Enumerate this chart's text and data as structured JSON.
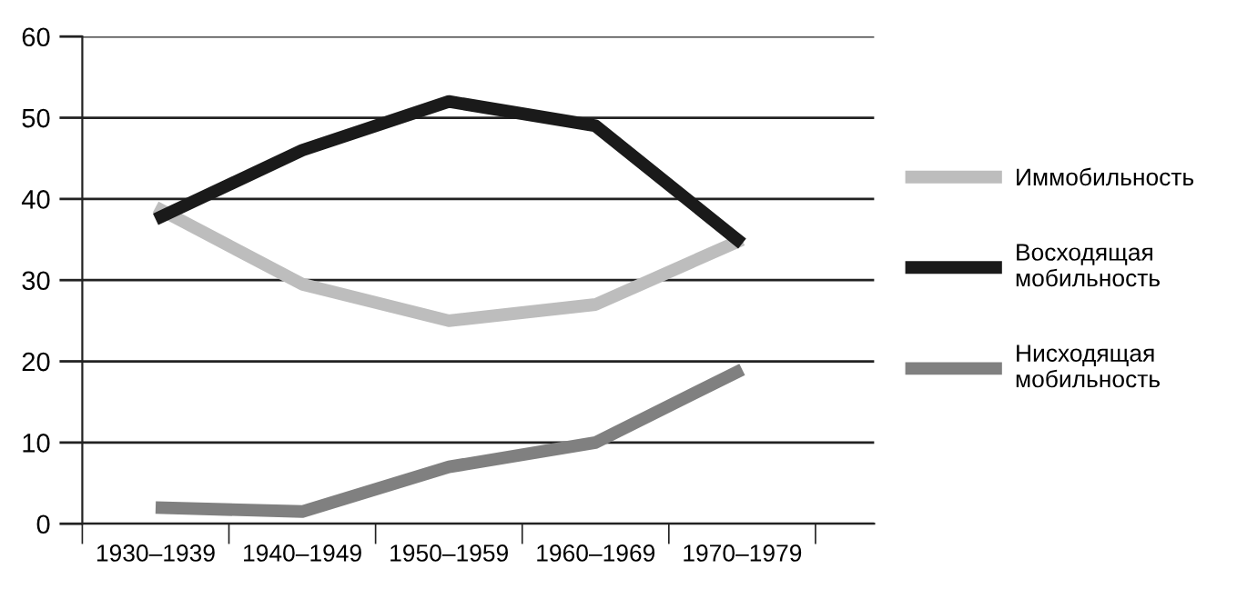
{
  "chart_data": {
    "type": "line",
    "categories": [
      "1930–1939",
      "1940–1949",
      "1950–1959",
      "1960–1969",
      "1970–1979"
    ],
    "series": [
      {
        "name": "Иммобильность",
        "color": "#bdbdbd",
        "values": [
          39,
          29.5,
          25,
          27,
          35
        ]
      },
      {
        "name": "Восходящая\nмобильность",
        "color": "#1a1a1a",
        "values": [
          37.5,
          46,
          52,
          49,
          34.5
        ]
      },
      {
        "name": "Нисходящая\nмобильность",
        "color": "#808080",
        "values": [
          2,
          1.5,
          7,
          10,
          19
        ]
      }
    ],
    "ylim": [
      0,
      60
    ],
    "yticks": [
      0,
      10,
      20,
      30,
      40,
      50,
      60
    ],
    "grid": "y",
    "legend": "right",
    "marker": "none",
    "line_style": "solid"
  }
}
